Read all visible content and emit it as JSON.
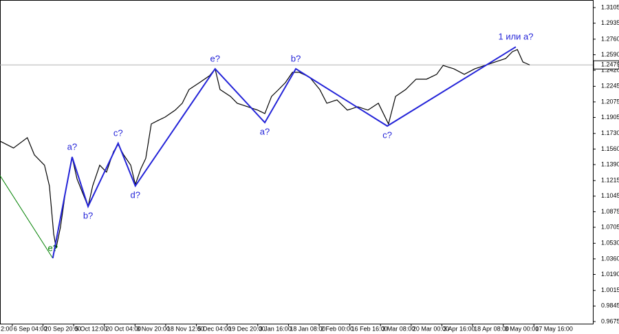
{
  "chart_data": {
    "type": "line",
    "xticks": [
      {
        "value": 0,
        "label": "2:00"
      },
      {
        "value": 1,
        "label": "6 Sep 04:00"
      },
      {
        "value": 2,
        "label": "20 Sep 20:00"
      },
      {
        "value": 3,
        "label": "5 Oct 12:00"
      },
      {
        "value": 4,
        "label": "20 Oct 04:00"
      },
      {
        "value": 5,
        "label": "3 Nov 20:00"
      },
      {
        "value": 6,
        "label": "18 Nov 12:00"
      },
      {
        "value": 7,
        "label": "5 Dec 04:00"
      },
      {
        "value": 8,
        "label": "19 Dec 20:00"
      },
      {
        "value": 9,
        "label": "3 Jan 16:00"
      },
      {
        "value": 10,
        "label": "18 Jan 08:00"
      },
      {
        "value": 11,
        "label": "2 Feb 00:00"
      },
      {
        "value": 12,
        "label": "16 Feb 16:00"
      },
      {
        "value": 13,
        "label": "3 Mar 08:00"
      },
      {
        "value": 14,
        "label": "20 Mar 00:00"
      },
      {
        "value": 15,
        "label": "3 Apr 16:00"
      },
      {
        "value": 16,
        "label": "18 Apr 08:00"
      },
      {
        "value": 17,
        "label": "3 May 00:00"
      },
      {
        "value": 18,
        "label": "17 May 16:00"
      }
    ],
    "xlim": [
      0.6,
      19.92
    ],
    "ylim": [
      0.9652,
      1.3188
    ],
    "yticks": [
      {
        "value": 1.3105,
        "label": "1.3105"
      },
      {
        "value": 1.2935,
        "label": "1.2935"
      },
      {
        "value": 1.276,
        "label": "1.2760"
      },
      {
        "value": 1.259,
        "label": "1.2590"
      },
      {
        "value": 1.242,
        "label": "1.2420"
      },
      {
        "value": 1.2245,
        "label": "1.2245"
      },
      {
        "value": 1.2075,
        "label": "1.2075"
      },
      {
        "value": 1.1905,
        "label": "1.1905"
      },
      {
        "value": 1.173,
        "label": "1.1730"
      },
      {
        "value": 1.156,
        "label": "1.1560"
      },
      {
        "value": 1.139,
        "label": "1.1390"
      },
      {
        "value": 1.1215,
        "label": "1.1215"
      },
      {
        "value": 1.1045,
        "label": "1.1045"
      },
      {
        "value": 1.0875,
        "label": "1.0875"
      },
      {
        "value": 1.0705,
        "label": "1.0705"
      },
      {
        "value": 1.053,
        "label": "1.0530"
      },
      {
        "value": 1.036,
        "label": "1.0360"
      },
      {
        "value": 1.019,
        "label": "1.0190"
      },
      {
        "value": 1.0015,
        "label": "1.0015"
      },
      {
        "value": 0.9845,
        "label": "0.9845"
      },
      {
        "value": 0.9675,
        "label": "0.9675"
      }
    ],
    "current_price": 1.2479,
    "series": [
      {
        "color": "#000000",
        "x": [
          0.6,
          1.04,
          1.49,
          1.72,
          2.05,
          2.21,
          2.35,
          2.43,
          2.57,
          2.73,
          2.95,
          3.11,
          3.29,
          3.47,
          3.62,
          3.85,
          4.07,
          4.3,
          4.45,
          4.63,
          4.86,
          5.01,
          5.19,
          5.35,
          5.53,
          5.75,
          5.98,
          6.31,
          6.54,
          6.76,
          7.1,
          7.43,
          7.61,
          7.77,
          8.11,
          8.33,
          8.67,
          9.0,
          9.23,
          9.45,
          9.68,
          9.9,
          10.13,
          10.35,
          10.69,
          11.02,
          11.25,
          11.58,
          11.92,
          12.26,
          12.59,
          12.93,
          13.26,
          13.49,
          13.82,
          14.16,
          14.5,
          14.83,
          15.04,
          15.39,
          15.73,
          16.07,
          16.4,
          16.74,
          17.08,
          17.3,
          17.46,
          17.64,
          17.86
        ],
        "values": [
          1.1646,
          1.1571,
          1.1684,
          1.1496,
          1.1383,
          1.1157,
          1.0631,
          1.048,
          1.0706,
          1.1082,
          1.1473,
          1.1233,
          1.1082,
          1.0932,
          1.1157,
          1.1383,
          1.1308,
          1.1533,
          1.1609,
          1.1496,
          1.1383,
          1.1172,
          1.1345,
          1.1458,
          1.1834,
          1.1872,
          1.1909,
          1.1985,
          1.206,
          1.221,
          1.2285,
          1.2361,
          1.2436,
          1.221,
          1.2135,
          1.206,
          1.2022,
          1.1985,
          1.1947,
          1.2135,
          1.221,
          1.2285,
          1.2398,
          1.2398,
          1.2345,
          1.221,
          1.206,
          1.2097,
          1.1985,
          1.2022,
          1.1985,
          1.206,
          1.1834,
          1.2135,
          1.221,
          1.2323,
          1.2323,
          1.2376,
          1.2473,
          1.2436,
          1.2376,
          1.2436,
          1.2473,
          1.2511,
          1.2549,
          1.2624,
          1.2646,
          1.2511,
          1.2479
        ]
      }
    ],
    "waves": [
      {
        "color": "#008000",
        "x": [
          0.6,
          2.32
        ],
        "values": [
          1.127,
          1.0367
        ],
        "labels": [
          null,
          "e?"
        ]
      },
      {
        "color": "#2323d8",
        "x": [
          2.32,
          2.95,
          3.47,
          4.45,
          5.01,
          7.61,
          9.23,
          10.24,
          13.22,
          17.41
        ],
        "values": [
          1.0367,
          1.1473,
          1.0932,
          1.1623,
          1.1157,
          1.2436,
          1.1849,
          1.2436,
          1.1811,
          1.2676
        ],
        "labels": [
          null,
          "a?",
          "b?",
          "c?",
          "d?",
          "e?",
          "a?",
          "b?",
          "c?",
          "1 или a?"
        ]
      }
    ]
  }
}
